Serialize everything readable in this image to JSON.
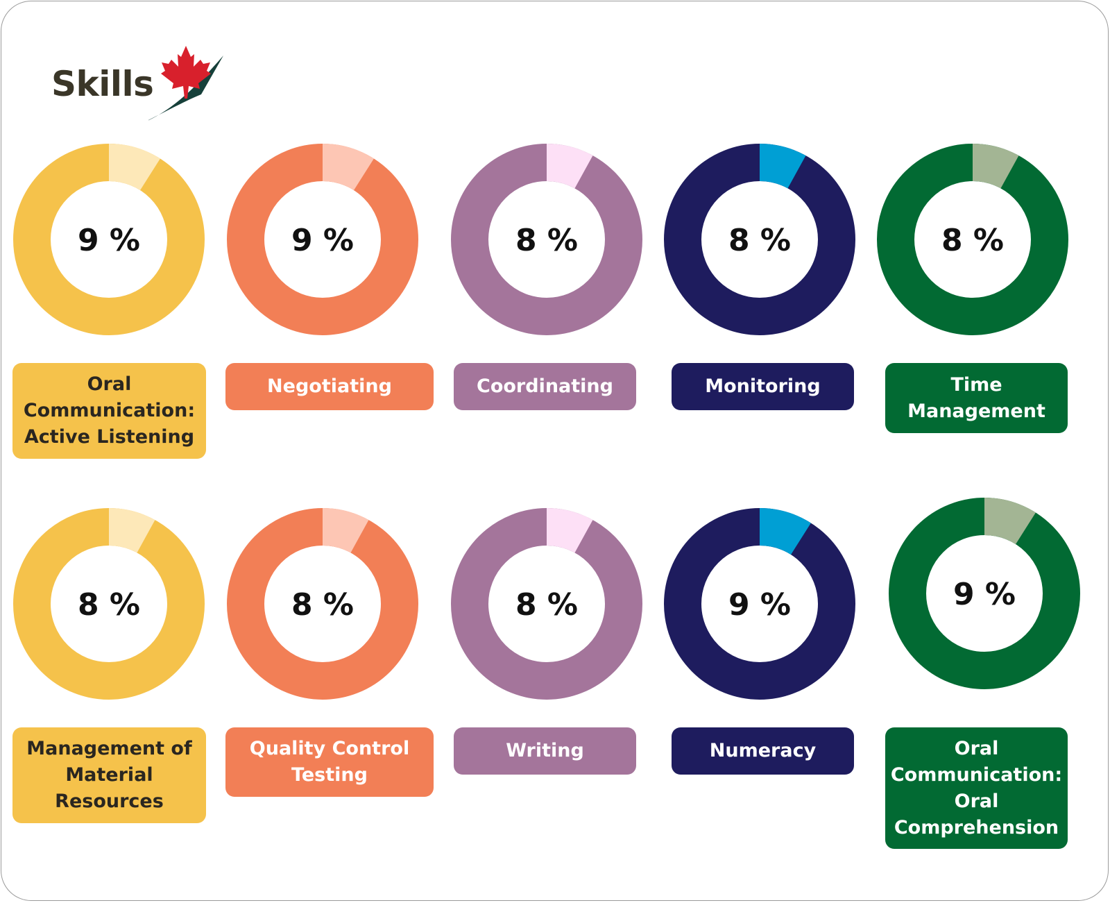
{
  "brand": {
    "name": "Skills",
    "maple_color": "#d8202c",
    "swoosh_color": "#16403a"
  },
  "chart_data": [
    {
      "type": "pie",
      "values": [
        9,
        91
      ],
      "display": "9 %",
      "label": "Oral\nCommunication:\nActive Listening",
      "ring": "#f5c24b",
      "slice": "#fde8b8",
      "label_bg": "#f5c24b",
      "label_fg": "#2a2620"
    },
    {
      "type": "pie",
      "values": [
        9,
        91
      ],
      "display": "9 %",
      "label": "Negotiating",
      "ring": "#f27f56",
      "slice": "#fdc6b4",
      "label_bg": "#f27f56",
      "label_fg": "#ffffff"
    },
    {
      "type": "pie",
      "values": [
        8,
        92
      ],
      "display": "8 %",
      "label": "Coordinating",
      "ring": "#a4759b",
      "slice": "#fde0f6",
      "label_bg": "#a4759b",
      "label_fg": "#ffffff"
    },
    {
      "type": "pie",
      "values": [
        8,
        92
      ],
      "display": "8 %",
      "label": "Monitoring",
      "ring": "#1e1c5e",
      "slice": "#009fd4",
      "label_bg": "#1e1c5e",
      "label_fg": "#ffffff"
    },
    {
      "type": "pie",
      "values": [
        8,
        92
      ],
      "display": "8 %",
      "label": "Time\nManagement",
      "ring": "#026a33",
      "slice": "#a3b594",
      "label_bg": "#026a33",
      "label_fg": "#ffffff"
    },
    {
      "type": "pie",
      "values": [
        8,
        92
      ],
      "display": "8 %",
      "label": "Management of\nMaterial\nResources",
      "ring": "#f5c24b",
      "slice": "#fde8b8",
      "label_bg": "#f5c24b",
      "label_fg": "#2a2620"
    },
    {
      "type": "pie",
      "values": [
        8,
        92
      ],
      "display": "8 %",
      "label": "Quality Control\nTesting",
      "ring": "#f27f56",
      "slice": "#fdc6b4",
      "label_bg": "#f27f56",
      "label_fg": "#ffffff"
    },
    {
      "type": "pie",
      "values": [
        8,
        92
      ],
      "display": "8 %",
      "label": "Writing",
      "ring": "#a4759b",
      "slice": "#fde0f6",
      "label_bg": "#a4759b",
      "label_fg": "#ffffff"
    },
    {
      "type": "pie",
      "values": [
        9,
        91
      ],
      "display": "9 %",
      "label": "Numeracy",
      "ring": "#1e1c5e",
      "slice": "#009fd4",
      "label_bg": "#1e1c5e",
      "label_fg": "#ffffff"
    },
    {
      "type": "pie",
      "values": [
        9,
        91
      ],
      "display": "9 %",
      "label": "Oral\nCommunication:\nOral\nComprehension",
      "ring": "#026a33",
      "slice": "#a3b594",
      "label_bg": "#026a33",
      "label_fg": "#ffffff"
    }
  ]
}
